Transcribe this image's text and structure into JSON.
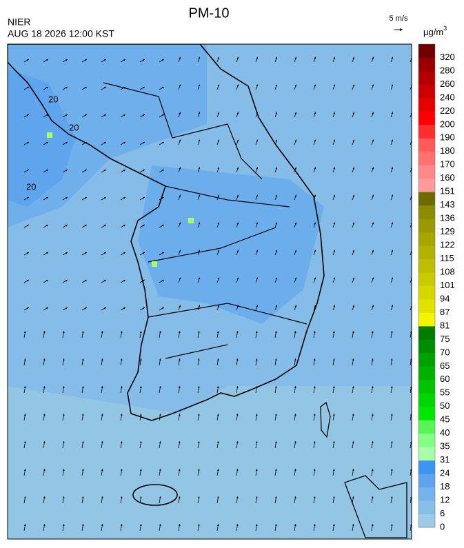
{
  "header": {
    "agency": "NIER",
    "title": "PM-10",
    "datetime": "AUG 18 2026 12:00 KST"
  },
  "wind_legend": {
    "label": "5 m/s"
  },
  "colorbar": {
    "unit": "μg/m",
    "unit_superscript": "3",
    "levels": [
      0,
      6,
      12,
      18,
      24,
      31,
      35,
      40,
      45,
      50,
      55,
      60,
      65,
      70,
      75,
      81,
      87,
      94,
      101,
      108,
      115,
      122,
      129,
      136,
      143,
      151,
      160,
      170,
      180,
      190,
      200,
      220,
      240,
      260,
      280,
      320
    ],
    "colors": [
      "#9ccbe8",
      "#88bfe9",
      "#74b3eb",
      "#5ea5ee",
      "#3d94f2",
      "#a6ffa6",
      "#84ff84",
      "#58f458",
      "#00e800",
      "#00d600",
      "#00c400",
      "#00b200",
      "#00a000",
      "#008e00",
      "#007c00",
      "#f4f400",
      "#e2e200",
      "#d6d600",
      "#caca00",
      "#bebe00",
      "#b2b200",
      "#a6a600",
      "#9a9a00",
      "#8c8c00",
      "#6c6c00",
      "#ff9a9a",
      "#ff8888",
      "#ff7070",
      "#ff5a5a",
      "#ff2e2e",
      "#ff0000",
      "#e60000",
      "#cc0000",
      "#b40000",
      "#9a0000",
      "#6e0000"
    ]
  },
  "contour_labels": [
    "20",
    "20",
    "20"
  ]
}
